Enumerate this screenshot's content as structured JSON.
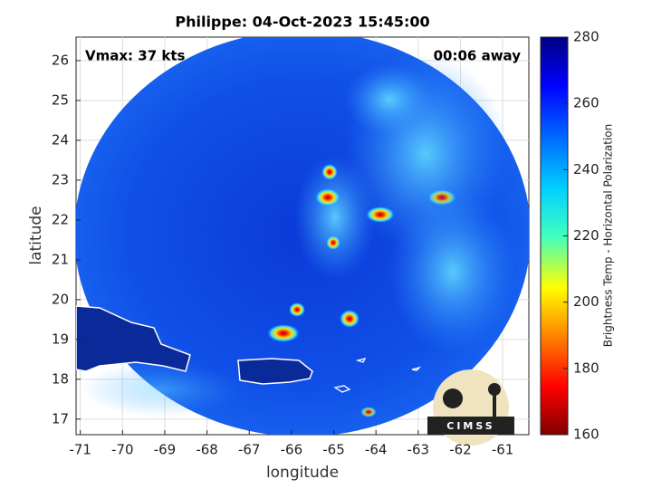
{
  "chart_data": {
    "type": "map",
    "title": "Philippe: 04-Oct-2023 15:45:00",
    "annotations": [
      "Vmax: 37 kts",
      "00:06 away"
    ],
    "xlabel": "longitude",
    "ylabel": "latitude",
    "xlim": [
      -71.1,
      -60.38
    ],
    "ylim": [
      16.61,
      26.59
    ],
    "xticks": [
      -71,
      -70,
      -69,
      -68,
      -67,
      -66,
      -65,
      -64,
      -63,
      -62,
      -61
    ],
    "yticks": [
      17,
      18,
      19,
      20,
      21,
      22,
      23,
      24,
      25,
      26
    ],
    "grid": true,
    "colorbar": {
      "label": "Brightness Temp - Horizontal Polarization",
      "lim": [
        160,
        280
      ],
      "ticks": [
        160,
        180,
        200,
        220,
        240,
        260,
        280
      ]
    }
  },
  "logo": "CIMSS"
}
